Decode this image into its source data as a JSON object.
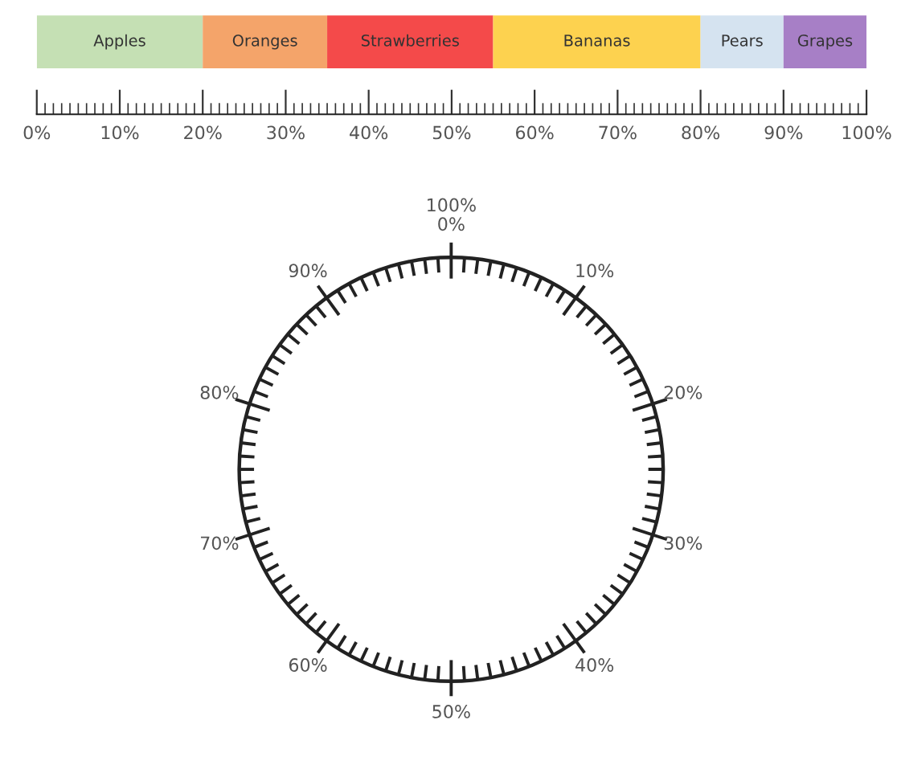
{
  "chart_data": [
    {
      "type": "bar",
      "orientation": "horizontal",
      "stacked": true,
      "categories": [
        null
      ],
      "series": [
        {
          "name": "Apples",
          "color": "#c5e0b4",
          "values": [
            20
          ]
        },
        {
          "name": "Oranges",
          "color": "#f4a46a",
          "values": [
            15
          ]
        },
        {
          "name": "Strawberries",
          "color": "#f44a4a",
          "values": [
            20
          ]
        },
        {
          "name": "Bananas",
          "color": "#fdd24f",
          "values": [
            25
          ]
        },
        {
          "name": "Pears",
          "color": "#d5e3f0",
          "values": [
            10
          ]
        },
        {
          "name": "Grapes",
          "color": "#a77fc6",
          "values": [
            10
          ]
        }
      ],
      "xlim": [
        0,
        100
      ],
      "xticks": [
        {
          "value": 0,
          "label": "0%"
        },
        {
          "value": 10,
          "label": "10%"
        },
        {
          "value": 20,
          "label": "20%"
        },
        {
          "value": 30,
          "label": "30%"
        },
        {
          "value": 40,
          "label": "40%"
        },
        {
          "value": 50,
          "label": "50%"
        },
        {
          "value": 60,
          "label": "60%"
        },
        {
          "value": 70,
          "label": "70%"
        },
        {
          "value": 80,
          "label": "80%"
        },
        {
          "value": 90,
          "label": "90%"
        },
        {
          "value": 100,
          "label": "100%"
        }
      ],
      "tick_labels": "x"
    },
    {
      "type": "other",
      "annotations": [
        "0%",
        "10%",
        "20%",
        "30%",
        "40%",
        "50%",
        "60%",
        "70%",
        "80%",
        "90%",
        "100%"
      ]
    }
  ]
}
